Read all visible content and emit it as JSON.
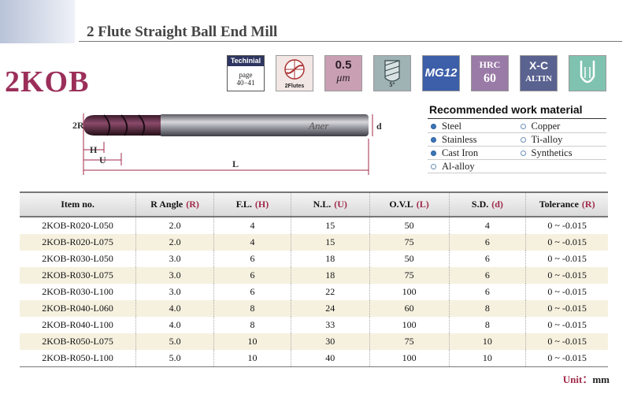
{
  "header": {
    "title": "2 Flute Straight Ball End Mill",
    "model": "2KOB"
  },
  "icons": {
    "technical": {
      "heading": "Techinial",
      "line1": "page",
      "line2": "40−41",
      "icon": "technical-page-icon"
    },
    "flutes": {
      "label": "2Flutes",
      "icon": "two-flute-icon"
    },
    "tolerance": {
      "top": "0.5",
      "bottom": "μm",
      "icon": "micron-icon"
    },
    "helix": {
      "label": "5°",
      "icon": "helix-angle-icon"
    },
    "grain": {
      "label": "MG12",
      "icon": "micro-grain-icon"
    },
    "hardness": {
      "top": "HRC",
      "bottom": "60",
      "icon": "hrc-icon"
    },
    "coating": {
      "top": "X-C",
      "bottom": "ALTIN",
      "icon": "coating-icon"
    },
    "shape": {
      "icon": "ball-nose-icon"
    }
  },
  "diagram": {
    "label_2r": "2R",
    "label_h": "H",
    "label_u": "U",
    "label_l": "L",
    "label_d": "d",
    "brand": "Aner"
  },
  "work_material": {
    "title": "Recommended work material",
    "items": [
      {
        "label": "Steel",
        "recommended": true
      },
      {
        "label": "Copper",
        "recommended": false
      },
      {
        "label": "Stainless",
        "recommended": true
      },
      {
        "label": "Ti-alloy",
        "recommended": false
      },
      {
        "label": "Cast Iron",
        "recommended": true
      },
      {
        "label": "Synthetics",
        "recommended": false
      },
      {
        "label": "Al-alloy",
        "recommended": false
      }
    ]
  },
  "table": {
    "headers": [
      {
        "label": "Item no.",
        "sym": ""
      },
      {
        "label": "R Angle",
        "sym": "(R)"
      },
      {
        "label": "F.L.",
        "sym": "(H)"
      },
      {
        "label": "N.L.",
        "sym": "(U)"
      },
      {
        "label": "O.V.L",
        "sym": "(L)"
      },
      {
        "label": "S.D.",
        "sym": "(d)"
      },
      {
        "label": "Tolerance",
        "sym": "(R)"
      }
    ],
    "rows": [
      [
        "2KOB-R020-L050",
        "2.0",
        "4",
        "15",
        "50",
        "4",
        "0 ~ -0.015"
      ],
      [
        "2KOB-R020-L075",
        "2.0",
        "4",
        "15",
        "75",
        "6",
        "0 ~ -0.015"
      ],
      [
        "2KOB-R030-L050",
        "3.0",
        "6",
        "18",
        "50",
        "6",
        "0 ~ -0.015"
      ],
      [
        "2KOB-R030-L075",
        "3.0",
        "6",
        "18",
        "75",
        "6",
        "0 ~ -0.015"
      ],
      [
        "2KOB-R030-L100",
        "3.0",
        "6",
        "22",
        "100",
        "6",
        "0 ~ -0.015"
      ],
      [
        "2KOB-R040-L060",
        "4.0",
        "8",
        "24",
        "60",
        "8",
        "0 ~ -0.015"
      ],
      [
        "2KOB-R040-L100",
        "4.0",
        "8",
        "33",
        "100",
        "8",
        "0 ~ -0.015"
      ],
      [
        "2KOB-R050-L075",
        "5.0",
        "10",
        "30",
        "75",
        "10",
        "0 ~ -0.015"
      ],
      [
        "2KOB-R050-L100",
        "5.0",
        "10",
        "40",
        "100",
        "10",
        "0 ~ -0.015"
      ]
    ]
  },
  "footer": {
    "unit_label": "Unit：",
    "unit_value": "mm"
  },
  "colors": {
    "accent": "#9b2f5a",
    "row_alt": "#f6f1df"
  }
}
